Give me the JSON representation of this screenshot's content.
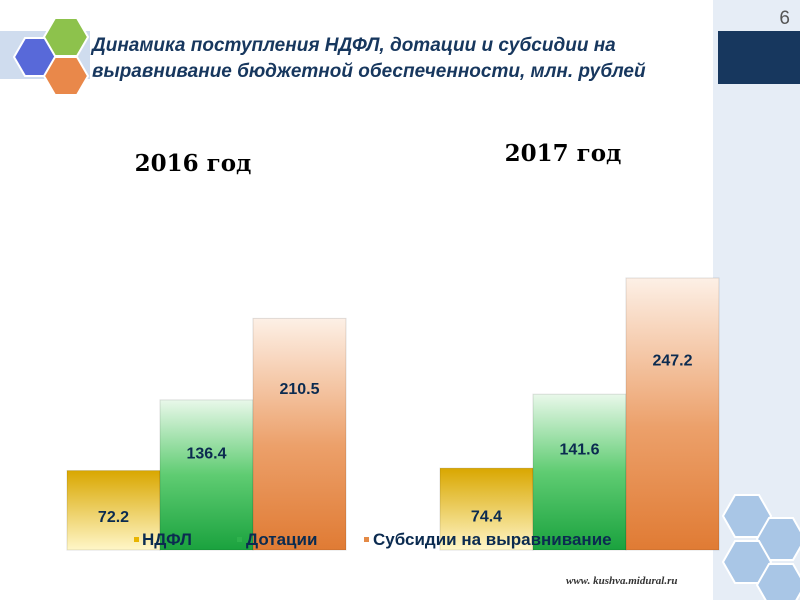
{
  "page": {
    "number": "6",
    "title": "Динамика поступления НДФЛ, дотации и субсидии на выравнивание бюджетной обеспеченности, млн. рублей",
    "website": "www. kushva.midural.ru"
  },
  "colors": {
    "ndfl": "#e8b400",
    "dotacii": "#2fb24d",
    "subsidii": "#e48a46",
    "title": "#17375e"
  },
  "chart_data": [
    {
      "type": "bar",
      "title": "2016 год",
      "categories": [
        "НДФЛ",
        "Дотации",
        "Субсидии на выравнивание"
      ],
      "values": [
        72.2,
        136.4,
        210.5
      ],
      "value_labels": [
        "72.2",
        "136.4",
        "210.5"
      ]
    },
    {
      "type": "bar",
      "title": "2017 год",
      "categories": [
        "НДФЛ",
        "Дотации",
        "Субсидии на выравнивание"
      ],
      "values": [
        74.4,
        141.6,
        247.2
      ],
      "value_labels": [
        "74.4",
        "141.6",
        "247.2"
      ]
    }
  ],
  "legend": {
    "position": "bottom",
    "items": [
      "НДФЛ",
      "Дотации",
      "Субсидии на выравнивание"
    ]
  }
}
